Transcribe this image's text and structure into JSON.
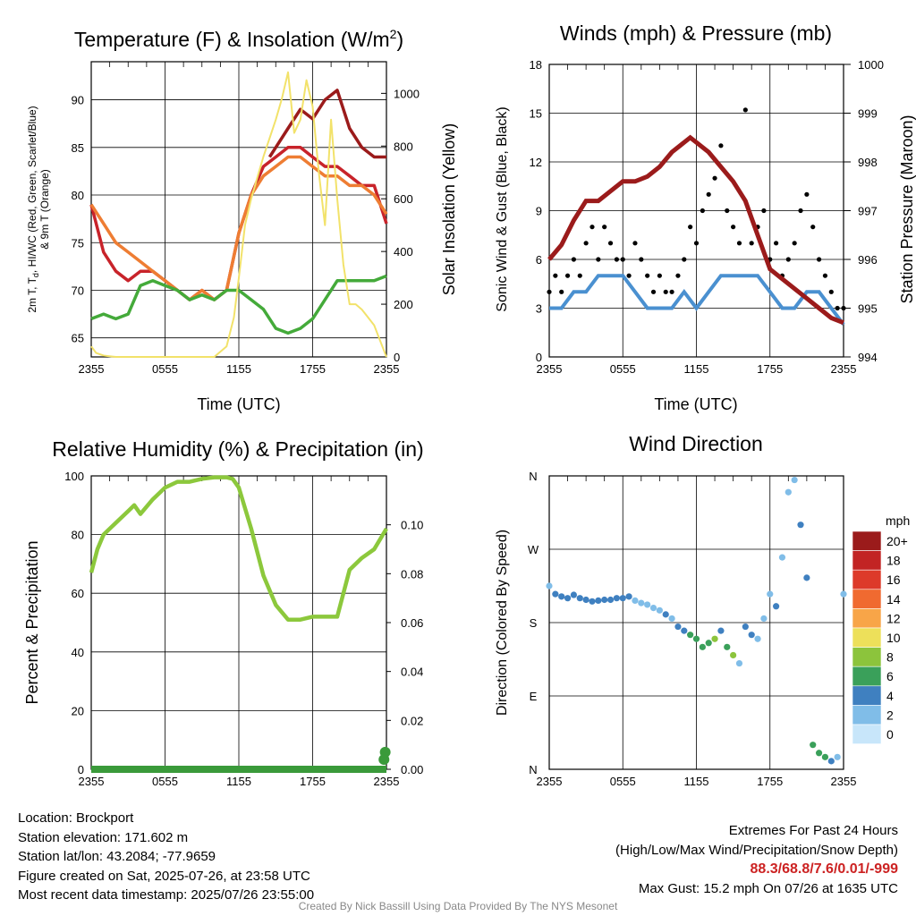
{
  "colors": {
    "maroon": "#9b1b1b",
    "red": "#c8232a",
    "orange": "#ee7d33",
    "scarlet_blue": "#d22a2a",
    "green": "#44aa3a",
    "yellow": "#f2e26a",
    "wind_blue": "#4a90d0",
    "gust_black": "#000000",
    "rh_green": "#8cc83c",
    "precip_green": "#3a9a3a"
  },
  "chart_data": [
    {
      "id": "temperature",
      "type": "line",
      "title": "Temperature (F) & Insolation (W/m",
      "title_sup": "2",
      "title_tail": ")",
      "ylabel_lines": [
        "2m T, T",
        "d",
        ", HI/WC (Red, Green, Scarlet/Blue)",
        "& 9m T (Orange)"
      ],
      "ylabel_right": "Solar Insolation (Yellow)",
      "xlabel": "Time (UTC)",
      "xticks": [
        "2355",
        "0555",
        "1155",
        "1755",
        "2355"
      ],
      "yticks_left": [
        65,
        70,
        75,
        80,
        85,
        90
      ],
      "yticks_right": [
        0,
        200,
        400,
        600,
        800,
        1000
      ],
      "ylim": [
        63,
        94
      ],
      "ylim_right": [
        0,
        1120
      ],
      "xlim_hours": [
        0,
        24
      ],
      "series": [
        {
          "color": "red",
          "x": [
            0,
            1,
            2,
            3,
            4,
            5,
            6,
            7,
            8,
            9,
            10,
            11,
            12,
            13,
            14,
            15,
            16,
            17,
            18,
            19,
            20,
            21,
            22,
            23,
            24
          ],
          "values": [
            79,
            74,
            72,
            71,
            72,
            72,
            71,
            70,
            69,
            70,
            69,
            70,
            76,
            80,
            83,
            84,
            85,
            85,
            84,
            83,
            83,
            82,
            81,
            81,
            77
          ]
        },
        {
          "color": "orange",
          "x": [
            0,
            1,
            2,
            3,
            4,
            5,
            6,
            7,
            8,
            9,
            10,
            11,
            12,
            13,
            14,
            15,
            16,
            17,
            18,
            19,
            20,
            21,
            22,
            23,
            24
          ],
          "values": [
            79,
            77,
            75,
            74,
            73,
            72,
            71,
            70,
            69,
            70,
            69,
            70,
            76,
            80,
            82,
            83,
            84,
            84,
            83,
            82,
            82,
            81,
            81,
            80,
            78
          ]
        },
        {
          "color": "green",
          "x": [
            0,
            1,
            2,
            3,
            4,
            5,
            6,
            7,
            8,
            9,
            10,
            11,
            12,
            13,
            14,
            15,
            16,
            17,
            18,
            19,
            20,
            21,
            22,
            23,
            24
          ],
          "values": [
            67,
            67.5,
            67,
            67.5,
            70.5,
            71,
            70.5,
            70,
            69,
            69.5,
            69,
            70,
            70,
            69,
            68,
            66,
            65.5,
            66,
            67,
            69,
            71,
            71,
            71,
            71,
            71.5
          ]
        },
        {
          "color": "maroon",
          "x": [
            14.5,
            15,
            16,
            17,
            18,
            19,
            20,
            21,
            22,
            23,
            24
          ],
          "values": [
            84,
            85,
            87,
            89,
            88,
            90,
            91,
            87,
            85,
            84,
            84
          ]
        },
        {
          "color": "yellow",
          "axis": "right",
          "x": [
            0,
            0.4,
            1,
            2,
            4,
            6,
            8,
            10,
            11,
            11.6,
            12,
            12.5,
            13,
            13.5,
            14,
            14.5,
            15,
            15.5,
            16,
            16.5,
            17,
            17.5,
            18,
            18.5,
            19,
            19.5,
            20,
            20.5,
            21,
            21.5,
            22,
            22.5,
            23,
            23.5,
            24
          ],
          "values": [
            40,
            15,
            5,
            0,
            0,
            0,
            0,
            0,
            40,
            150,
            300,
            500,
            600,
            680,
            760,
            830,
            900,
            980,
            1080,
            850,
            900,
            1050,
            950,
            700,
            500,
            900,
            600,
            350,
            200,
            200,
            180,
            150,
            120,
            60,
            0
          ]
        }
      ]
    },
    {
      "id": "winds",
      "type": "scatter",
      "title": "Winds (mph) & Pressure (mb)",
      "ylabel": "Sonic Wind & Gust (Blue, Black)",
      "ylabel_right": "Station Pressure (Maroon)",
      "xlabel": "Time (UTC)",
      "xticks": [
        "2355",
        "0555",
        "1155",
        "1755",
        "2355"
      ],
      "yticks_left": [
        0,
        3,
        6,
        9,
        12,
        15,
        18
      ],
      "yticks_right": [
        994,
        995,
        996,
        997,
        998,
        999,
        1000
      ],
      "ylim": [
        0,
        18
      ],
      "ylim_right": [
        994,
        1000
      ],
      "pressure": {
        "x": [
          0,
          1,
          2,
          3,
          4,
          5,
          6,
          7,
          8,
          9,
          10,
          11,
          11.5,
          12,
          13,
          14,
          15,
          16,
          17,
          18,
          19,
          20,
          21,
          22,
          23,
          24
        ],
        "values": [
          996,
          996.3,
          996.8,
          997.2,
          997.2,
          997.4,
          997.6,
          997.6,
          997.7,
          997.9,
          998.2,
          998.4,
          998.5,
          998.4,
          998.2,
          997.9,
          997.6,
          997.2,
          996.5,
          995.8,
          995.6,
          995.4,
          995.2,
          995.0,
          994.8,
          994.7
        ]
      },
      "wind": {
        "x": [
          0,
          1,
          2,
          3,
          4,
          5,
          6,
          7,
          8,
          9,
          10,
          11,
          12,
          13,
          14,
          15,
          16,
          17,
          18,
          19,
          20,
          21,
          22,
          23,
          24
        ],
        "values": [
          3,
          3,
          4,
          4,
          5,
          5,
          5,
          4,
          3,
          3,
          3,
          4,
          3,
          4,
          5,
          5,
          5,
          5,
          4,
          3,
          3,
          4,
          4,
          3,
          2
        ]
      },
      "gust": {
        "x": [
          0,
          0.5,
          1,
          1.5,
          2,
          2.5,
          3,
          3.5,
          4,
          4.5,
          5,
          5.5,
          6,
          6.5,
          7,
          7.5,
          8,
          8.5,
          9,
          9.5,
          10,
          10.5,
          11,
          11.5,
          12,
          12.5,
          13,
          13.5,
          14,
          14.5,
          15,
          15.5,
          16,
          16.5,
          17,
          17.5,
          18,
          18.5,
          19,
          19.5,
          20,
          20.5,
          21,
          21.5,
          22,
          22.5,
          23,
          23.5,
          24
        ],
        "values": [
          4,
          5,
          4,
          5,
          6,
          5,
          7,
          8,
          6,
          8,
          7,
          6,
          6,
          5,
          7,
          6,
          5,
          4,
          5,
          4,
          4,
          5,
          6,
          8,
          7,
          9,
          10,
          11,
          13,
          9,
          8,
          7,
          15.2,
          7,
          8,
          9,
          6,
          7,
          5,
          6,
          7,
          9,
          10,
          8,
          6,
          5,
          4,
          3,
          3
        ]
      },
      "max_gust_marker": 15.2
    },
    {
      "id": "humidity",
      "type": "line",
      "title": "Relative Humidity (%) & Precipitation (in)",
      "ylabel": "Percent & Precipitation",
      "xlabel": "",
      "xticks": [
        "2355",
        "0555",
        "1155",
        "1755",
        "2355"
      ],
      "yticks_left": [
        0,
        20,
        40,
        60,
        80,
        100
      ],
      "yticks_right": [
        "0.00",
        "0.02",
        "0.04",
        "0.06",
        "0.08",
        "0.10"
      ],
      "ylim": [
        0,
        100
      ],
      "ylim_right": [
        0,
        0.12
      ],
      "rh": {
        "x": [
          0,
          0.5,
          1,
          2,
          3,
          3.5,
          4,
          5,
          6,
          7,
          8,
          9,
          10,
          11,
          11.5,
          12,
          13,
          14,
          15,
          16,
          17,
          18,
          19,
          20,
          21,
          22,
          23,
          24
        ],
        "values": [
          67,
          75,
          80,
          84,
          88,
          90,
          87,
          92,
          96,
          98,
          98,
          99,
          99.5,
          99.5,
          99,
          96,
          82,
          66,
          56,
          51,
          51,
          52,
          52,
          52,
          68,
          72,
          75,
          82
        ]
      },
      "precip": {
        "x": [
          0,
          24
        ],
        "values": [
          0,
          0
        ]
      },
      "precip_points": {
        "x": [
          23.8,
          23.9
        ],
        "values": [
          0.004,
          0.007
        ]
      }
    },
    {
      "id": "wind_direction",
      "type": "scatter",
      "title": "Wind Direction",
      "ylabel": "Direction (Colored By Speed)",
      "xlabel": "",
      "xticks": [
        "2355",
        "0555",
        "1155",
        "1755",
        "2355"
      ],
      "yticks_left": [
        "N",
        "E",
        "S",
        "W",
        "N"
      ],
      "ylim": [
        0,
        360
      ],
      "legend_title": "mph",
      "legend_labels": [
        "20+",
        "18",
        "16",
        "14",
        "12",
        "10",
        "8",
        "6",
        "4",
        "2",
        "0"
      ],
      "legend_colors": [
        "#9b1b1b",
        "#c22424",
        "#dd3a2a",
        "#f06a30",
        "#f8a548",
        "#ede05a",
        "#8cc43c",
        "#3aa05a",
        "#3f80c0",
        "#80bde8",
        "#c8e6fa"
      ],
      "direction": {
        "x": [
          0,
          0.5,
          1,
          1.5,
          2,
          2.5,
          3,
          3.5,
          4,
          4.5,
          5,
          5.5,
          6,
          6.5,
          7,
          7.5,
          8,
          8.5,
          9,
          9.5,
          10,
          10.5,
          11,
          11.5,
          12,
          12.5,
          13,
          13.5,
          14,
          14.5,
          15,
          15.5,
          16,
          16.5,
          17,
          17.5,
          18,
          18.5,
          19,
          19.5,
          20,
          20.5,
          21,
          21.5,
          22,
          22.5,
          23,
          23.5,
          24
        ],
        "values": [
          225,
          215,
          212,
          210,
          214,
          210,
          208,
          206,
          207,
          208,
          208,
          210,
          210,
          212,
          207,
          204,
          202,
          198,
          195,
          190,
          185,
          175,
          170,
          165,
          160,
          150,
          155,
          160,
          170,
          150,
          140,
          130,
          175,
          165,
          160,
          185,
          215,
          200,
          260,
          340,
          355,
          300,
          235,
          30,
          20,
          15,
          10,
          15,
          215
        ],
        "speeds": [
          2,
          3,
          4,
          4,
          4,
          3,
          4,
          4,
          4,
          4,
          4,
          4,
          3,
          3,
          2,
          2,
          2,
          2,
          2,
          3,
          2,
          4,
          4,
          5,
          6,
          5,
          6,
          7,
          4,
          5,
          7,
          2,
          4,
          3,
          2,
          2,
          2,
          4,
          2,
          2,
          2,
          4,
          4,
          5,
          6,
          6,
          4,
          2,
          2
        ]
      }
    }
  ],
  "info": {
    "location": "Location: Brockport",
    "elevation": "Station elevation: 171.602 m",
    "latlon": "Station lat/lon: 43.2084; -77.9659",
    "created": "Figure created on Sat, 2025-07-26, at 23:58 UTC",
    "recent": "Most recent data timestamp: 2025/07/26 23:55:00",
    "extremes_title": "Extremes For Past 24 Hours",
    "extremes_sub": "(High/Low/Max Wind/Precipitation/Snow Depth)",
    "extremes_values": "88.3/68.8/7.6/0.01/-999",
    "max_gust": "Max Gust: 15.2 mph On 07/26 at 1635 UTC",
    "credit": "Created By Nick Bassill Using Data Provided By The NYS Mesonet"
  }
}
